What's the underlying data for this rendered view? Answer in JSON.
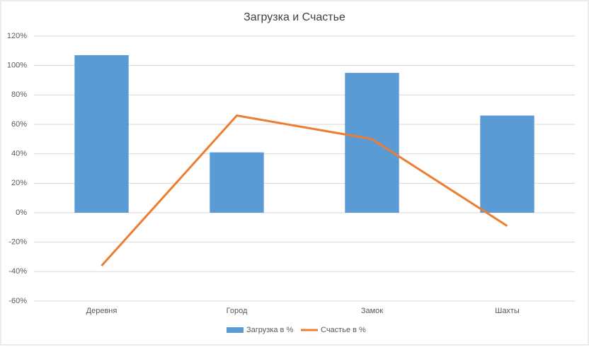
{
  "chart_data": {
    "type": "bar",
    "title": "Загрузка и Счастье",
    "categories": [
      "Деревня",
      "Город",
      "Замок",
      "Шахты"
    ],
    "series": [
      {
        "name": "Загрузка в %",
        "type": "bar",
        "color": "#5b9bd5",
        "values": [
          107,
          41,
          95,
          66
        ]
      },
      {
        "name": "Счастье в %",
        "type": "line",
        "color": "#ed7d31",
        "values": [
          -36,
          66,
          50,
          -9
        ]
      }
    ],
    "ylim": [
      -60,
      120
    ],
    "yticks": [
      {
        "value": -60,
        "label": "-60%"
      },
      {
        "value": -40,
        "label": "-40%"
      },
      {
        "value": -20,
        "label": "-20%"
      },
      {
        "value": 0,
        "label": "0%"
      },
      {
        "value": 20,
        "label": "20%"
      },
      {
        "value": 40,
        "label": "40%"
      },
      {
        "value": 60,
        "label": "60%"
      },
      {
        "value": 80,
        "label": "80%"
      },
      {
        "value": 100,
        "label": "100%"
      },
      {
        "value": 120,
        "label": "120%"
      }
    ],
    "grid": true,
    "legend": "bottom"
  }
}
